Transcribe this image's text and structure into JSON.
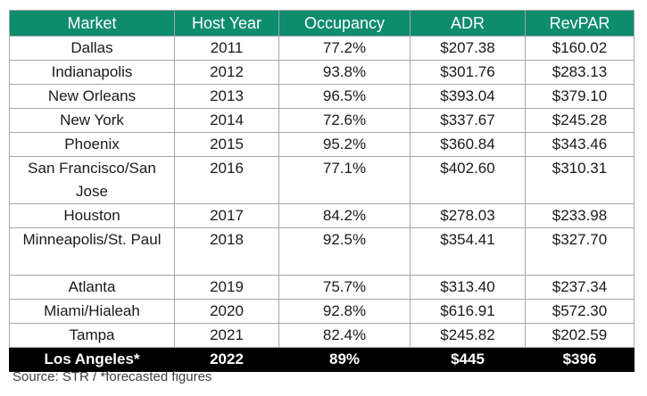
{
  "table": {
    "headers": [
      "Market",
      "Host Year",
      "Occupancy",
      "ADR",
      "RevPAR"
    ],
    "rows": [
      {
        "market": "Dallas",
        "year": "2011",
        "occupancy": "77.2%",
        "adr": "$207.38",
        "revpar": "$160.02"
      },
      {
        "market": "Indianapolis",
        "year": "2012",
        "occupancy": "93.8%",
        "adr": "$301.76",
        "revpar": "$283.13"
      },
      {
        "market": "New Orleans",
        "year": "2013",
        "occupancy": "96.5%",
        "adr": "$393.04",
        "revpar": "$379.10"
      },
      {
        "market": "New York",
        "year": "2014",
        "occupancy": "72.6%",
        "adr": "$337.67",
        "revpar": "$245.28"
      },
      {
        "market": "Phoenix",
        "year": "2015",
        "occupancy": "95.2%",
        "adr": "$360.84",
        "revpar": "$343.46"
      },
      {
        "market": "San Francisco/San Jose",
        "year": "2016",
        "occupancy": "77.1%",
        "adr": "$402.60",
        "revpar": "$310.31"
      },
      {
        "market": "Houston",
        "year": "2017",
        "occupancy": "84.2%",
        "adr": "$278.03",
        "revpar": "$233.98"
      },
      {
        "market": "Minneapolis/St. Paul",
        "year": "2018",
        "occupancy": "92.5%",
        "adr": "$354.41",
        "revpar": "$327.70"
      },
      {
        "market": "Atlanta",
        "year": "2019",
        "occupancy": "75.7%",
        "adr": "$313.40",
        "revpar": "$237.34"
      },
      {
        "market": "Miami/Hialeah",
        "year": "2020",
        "occupancy": "92.8%",
        "adr": "$616.91",
        "revpar": "$572.30"
      },
      {
        "market": "Tampa",
        "year": "2021",
        "occupancy": "82.4%",
        "adr": "$245.82",
        "revpar": "$202.59"
      }
    ],
    "total_row": {
      "market": "Los Angeles*",
      "year": "2022",
      "occupancy": "89%",
      "adr": "$445",
      "revpar": "$396"
    }
  },
  "footnote": "Source: STR / *forecasted figures",
  "colors": {
    "header_bg": "#0e8c6e",
    "header_text": "#ffffff",
    "total_bg": "#000000",
    "total_text": "#ffffff",
    "border": "#a6a6a6"
  }
}
